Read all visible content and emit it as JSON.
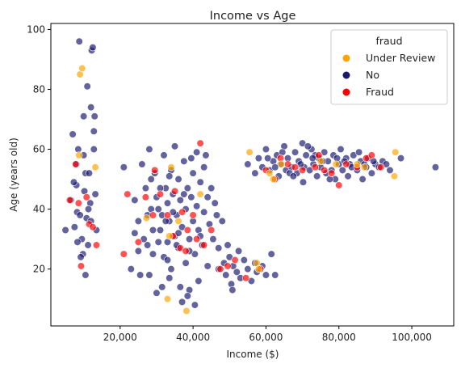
{
  "chart_data": {
    "type": "scatter",
    "title": "Income vs Age",
    "xlabel": "Income ($)",
    "ylabel": "Age (years old)",
    "xlim": [
      1000,
      111500
    ],
    "ylim": [
      1,
      102
    ],
    "x_ticks": [
      20000,
      40000,
      60000,
      80000,
      100000
    ],
    "x_tick_labels": [
      "20,000",
      "40,000",
      "60,000",
      "80,000",
      "100,000"
    ],
    "y_ticks": [
      20,
      40,
      60,
      80,
      100
    ],
    "y_tick_labels": [
      "20",
      "40",
      "60",
      "80",
      "100"
    ],
    "grid": false,
    "legend": {
      "title": "fraud",
      "placement": "top-right",
      "entries": [
        {
          "label": "Under Review",
          "color": "#ffa500"
        },
        {
          "label": "No",
          "color": "#191970"
        },
        {
          "label": "Fraud",
          "color": "#ff0000"
        }
      ]
    },
    "series": [
      {
        "name": "No",
        "color": "#191970",
        "points": [
          [
            5000,
            33
          ],
          [
            6500,
            43
          ],
          [
            7000,
            65
          ],
          [
            7500,
            34
          ],
          [
            8000,
            55
          ],
          [
            8000,
            48
          ],
          [
            8200,
            39
          ],
          [
            8500,
            60
          ],
          [
            8800,
            96
          ],
          [
            9000,
            38
          ],
          [
            9500,
            30
          ],
          [
            9800,
            25
          ],
          [
            10000,
            58
          ],
          [
            10200,
            46
          ],
          [
            10500,
            52
          ],
          [
            10800,
            37
          ],
          [
            11000,
            81
          ],
          [
            11200,
            28
          ],
          [
            11500,
            52
          ],
          [
            11800,
            42
          ],
          [
            12000,
            74
          ],
          [
            12200,
            93
          ],
          [
            12500,
            94
          ],
          [
            12800,
            66
          ],
          [
            13000,
            71
          ],
          [
            13200,
            45
          ],
          [
            13500,
            33
          ],
          [
            10500,
            18
          ],
          [
            9200,
            24
          ],
          [
            12800,
            60
          ],
          [
            8300,
            29
          ],
          [
            11300,
            40
          ],
          [
            7300,
            49
          ],
          [
            10000,
            71
          ],
          [
            12000,
            36
          ],
          [
            21000,
            54
          ],
          [
            23000,
            20
          ],
          [
            24000,
            43
          ],
          [
            25000,
            36
          ],
          [
            25500,
            18
          ],
          [
            26000,
            55
          ],
          [
            27000,
            47
          ],
          [
            27500,
            28
          ],
          [
            28000,
            60
          ],
          [
            28500,
            40
          ],
          [
            29000,
            25
          ],
          [
            29500,
            52
          ],
          [
            30000,
            44
          ],
          [
            30000,
            12
          ],
          [
            31000,
            33
          ],
          [
            31500,
            38
          ],
          [
            32000,
            58
          ],
          [
            32000,
            24
          ],
          [
            32500,
            47
          ],
          [
            33000,
            42
          ],
          [
            33000,
            29
          ],
          [
            33500,
            36
          ],
          [
            34000,
            53
          ],
          [
            34000,
            20
          ],
          [
            34500,
            45
          ],
          [
            35000,
            31
          ],
          [
            35000,
            61
          ],
          [
            35500,
            38
          ],
          [
            36000,
            50
          ],
          [
            36000,
            27
          ],
          [
            36500,
            43
          ],
          [
            37000,
            34
          ],
          [
            37000,
            9
          ],
          [
            37500,
            56
          ],
          [
            38000,
            40
          ],
          [
            38000,
            22
          ],
          [
            38500,
            47
          ],
          [
            39000,
            30
          ],
          [
            39000,
            13
          ],
          [
            39500,
            44
          ],
          [
            40000,
            36
          ],
          [
            40000,
            52
          ],
          [
            40500,
            25
          ],
          [
            41000,
            41
          ],
          [
            41500,
            33
          ],
          [
            42000,
            49
          ],
          [
            42500,
            28
          ],
          [
            43000,
            39
          ],
          [
            43500,
            58
          ],
          [
            44000,
            21
          ],
          [
            44500,
            35
          ],
          [
            45000,
            47
          ],
          [
            45500,
            30
          ],
          [
            46000,
            42
          ],
          [
            47000,
            27
          ],
          [
            48000,
            36
          ],
          [
            29000,
            33
          ],
          [
            30500,
            29
          ],
          [
            31000,
            47
          ],
          [
            33500,
            51
          ],
          [
            36500,
            14
          ],
          [
            38500,
            11
          ],
          [
            40500,
            8
          ],
          [
            41500,
            16
          ],
          [
            27500,
            38
          ],
          [
            28500,
            50
          ],
          [
            26500,
            30
          ],
          [
            25000,
            26
          ],
          [
            24000,
            32
          ],
          [
            39500,
            57
          ],
          [
            41000,
            59
          ],
          [
            43000,
            54
          ],
          [
            34500,
            39
          ],
          [
            32500,
            36
          ],
          [
            35500,
            28
          ],
          [
            37500,
            45
          ],
          [
            36000,
            32
          ],
          [
            30500,
            40
          ],
          [
            33000,
            23
          ],
          [
            39000,
            26
          ],
          [
            42000,
            31
          ],
          [
            44000,
            44
          ],
          [
            46500,
            38
          ],
          [
            28000,
            18
          ],
          [
            31500,
            14
          ],
          [
            33500,
            17
          ],
          [
            47000,
            20
          ],
          [
            48500,
            22
          ],
          [
            49000,
            18
          ],
          [
            50000,
            24
          ],
          [
            50500,
            15
          ],
          [
            51000,
            21
          ],
          [
            52000,
            19
          ],
          [
            52500,
            26
          ],
          [
            53000,
            17
          ],
          [
            54000,
            23
          ],
          [
            55000,
            20
          ],
          [
            56000,
            16
          ],
          [
            57000,
            22
          ],
          [
            57500,
            19
          ],
          [
            59000,
            21
          ],
          [
            60000,
            18
          ],
          [
            61500,
            25
          ],
          [
            62500,
            18
          ],
          [
            49500,
            28
          ],
          [
            50800,
            13
          ],
          [
            55000,
            55
          ],
          [
            57000,
            52
          ],
          [
            58000,
            57
          ],
          [
            59000,
            54
          ],
          [
            60000,
            60
          ],
          [
            61000,
            53
          ],
          [
            62000,
            56
          ],
          [
            63000,
            58
          ],
          [
            63500,
            51
          ],
          [
            64000,
            55
          ],
          [
            65000,
            61
          ],
          [
            65500,
            53
          ],
          [
            66000,
            57
          ],
          [
            67000,
            54
          ],
          [
            68000,
            59
          ],
          [
            68500,
            52
          ],
          [
            69000,
            56
          ],
          [
            70000,
            62
          ],
          [
            70500,
            54
          ],
          [
            71000,
            58
          ],
          [
            72000,
            53
          ],
          [
            72500,
            60
          ],
          [
            73000,
            55
          ],
          [
            74000,
            51
          ],
          [
            74500,
            57
          ],
          [
            75000,
            54
          ],
          [
            76000,
            59
          ],
          [
            76500,
            52
          ],
          [
            77000,
            56
          ],
          [
            78000,
            53
          ],
          [
            78500,
            58
          ],
          [
            79000,
            50
          ],
          [
            80000,
            55
          ],
          [
            80500,
            60
          ],
          [
            81000,
            53
          ],
          [
            82000,
            57
          ],
          [
            82500,
            51
          ],
          [
            83000,
            55
          ],
          [
            84000,
            58
          ],
          [
            85000,
            53
          ],
          [
            86000,
            56
          ],
          [
            86500,
            50
          ],
          [
            87000,
            55
          ],
          [
            88000,
            57
          ],
          [
            89000,
            52
          ],
          [
            90000,
            55
          ],
          [
            91000,
            54
          ],
          [
            92000,
            56
          ],
          [
            93000,
            55
          ],
          [
            94000,
            53
          ],
          [
            97000,
            57
          ],
          [
            106500,
            54
          ],
          [
            60500,
            57
          ],
          [
            62500,
            54
          ],
          [
            64500,
            59
          ],
          [
            66500,
            52
          ],
          [
            69500,
            55
          ],
          [
            71500,
            61
          ],
          [
            73500,
            58
          ],
          [
            75500,
            56
          ],
          [
            77500,
            50
          ],
          [
            79500,
            57
          ],
          [
            81500,
            56
          ],
          [
            83500,
            54
          ],
          [
            85500,
            59
          ],
          [
            87500,
            54
          ],
          [
            89500,
            56
          ],
          [
            67500,
            51
          ],
          [
            70200,
            49
          ],
          [
            72800,
            57
          ]
        ]
      },
      {
        "name": "Fraud",
        "color": "#ff0000",
        "points": [
          [
            6200,
            43
          ],
          [
            7800,
            55
          ],
          [
            8600,
            42
          ],
          [
            9300,
            21
          ],
          [
            10800,
            44
          ],
          [
            11500,
            35
          ],
          [
            12500,
            34
          ],
          [
            13500,
            28
          ],
          [
            21000,
            25
          ],
          [
            22000,
            45
          ],
          [
            25000,
            29
          ],
          [
            27000,
            44
          ],
          [
            29000,
            38
          ],
          [
            31000,
            45
          ],
          [
            33000,
            38
          ],
          [
            34500,
            31
          ],
          [
            36500,
            27
          ],
          [
            38000,
            26
          ],
          [
            38500,
            33
          ],
          [
            40000,
            38
          ],
          [
            41000,
            30
          ],
          [
            42000,
            62
          ],
          [
            43000,
            28
          ],
          [
            45000,
            33
          ],
          [
            47500,
            20
          ],
          [
            49500,
            21
          ],
          [
            51500,
            23
          ],
          [
            54500,
            17
          ],
          [
            58500,
            20
          ],
          [
            35000,
            46
          ],
          [
            37000,
            39
          ],
          [
            29500,
            53
          ],
          [
            60000,
            53
          ],
          [
            62500,
            50
          ],
          [
            66000,
            55
          ],
          [
            68000,
            54
          ],
          [
            70000,
            53
          ],
          [
            73500,
            54
          ],
          [
            76000,
            53
          ],
          [
            78000,
            52
          ],
          [
            80000,
            48
          ],
          [
            82000,
            55
          ],
          [
            85000,
            54
          ],
          [
            87500,
            57
          ],
          [
            89000,
            58
          ],
          [
            91500,
            54
          ],
          [
            74500,
            58
          ],
          [
            64000,
            57
          ]
        ]
      },
      {
        "name": "Under Review",
        "color": "#ffa500",
        "points": [
          [
            9000,
            85
          ],
          [
            9600,
            87
          ],
          [
            8700,
            58
          ],
          [
            13200,
            54
          ],
          [
            33000,
            10
          ],
          [
            34000,
            54
          ],
          [
            33500,
            31
          ],
          [
            38200,
            6
          ],
          [
            42000,
            45
          ],
          [
            36000,
            36
          ],
          [
            27200,
            37
          ],
          [
            57500,
            22
          ],
          [
            58000,
            20
          ],
          [
            62000,
            50
          ],
          [
            61000,
            52
          ],
          [
            64200,
            55
          ],
          [
            85000,
            55
          ],
          [
            87000,
            54
          ],
          [
            95200,
            51
          ],
          [
            95500,
            59
          ],
          [
            75000,
            56
          ],
          [
            79200,
            55
          ],
          [
            55500,
            59
          ]
        ]
      }
    ]
  }
}
